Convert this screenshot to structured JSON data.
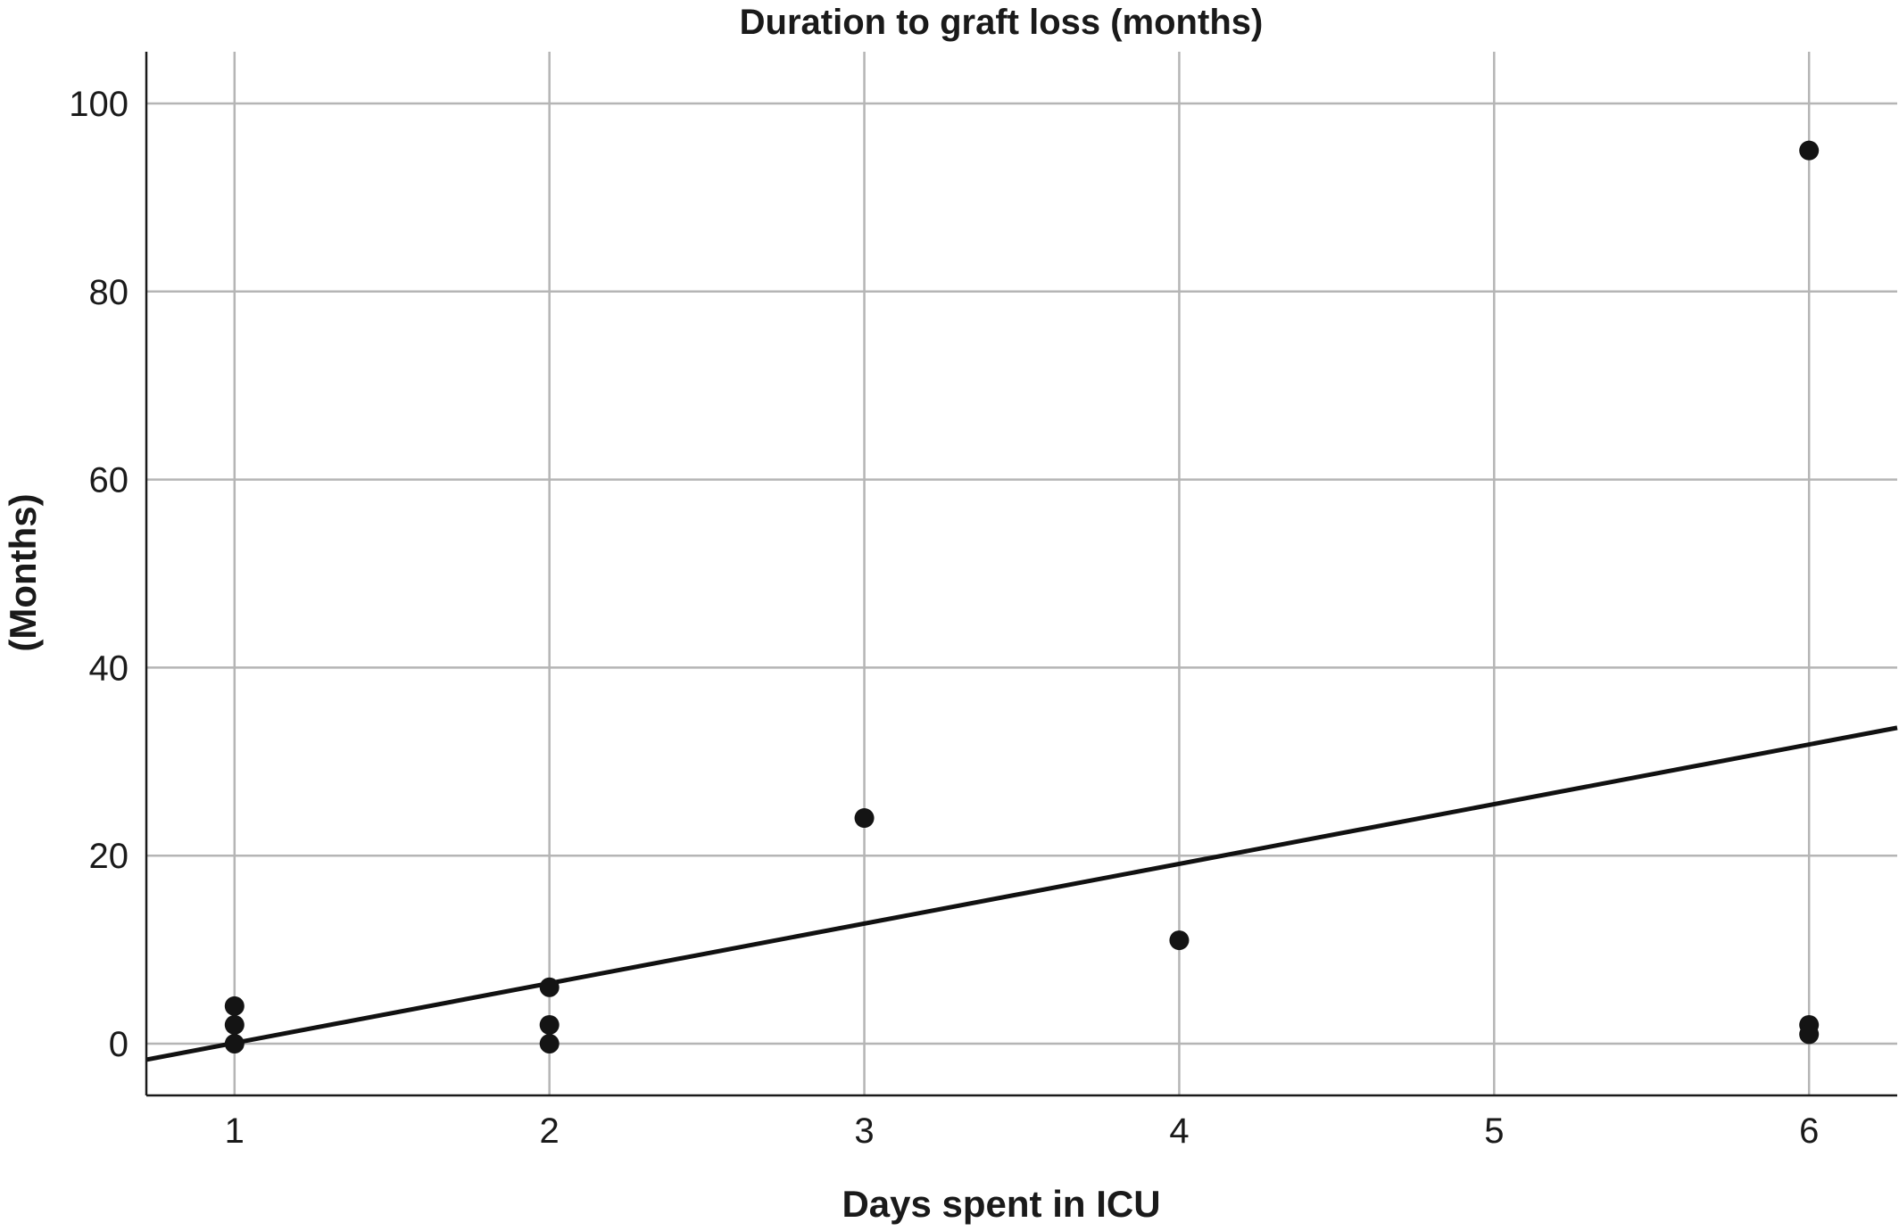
{
  "chart_data": {
    "type": "scatter",
    "title": "Duration to graft loss (months)",
    "xlabel": "Days spent in ICU",
    "ylabel": "(Months)",
    "xlim": [
      0.72,
      6.28
    ],
    "ylim": [
      -5.5,
      105.5
    ],
    "xticks": [
      1,
      2,
      3,
      4,
      5,
      6
    ],
    "yticks": [
      0,
      20,
      40,
      60,
      80,
      100
    ],
    "grid": true,
    "points": [
      {
        "x": 1,
        "y": 4
      },
      {
        "x": 1,
        "y": 2
      },
      {
        "x": 1,
        "y": 0
      },
      {
        "x": 2,
        "y": 6
      },
      {
        "x": 2,
        "y": 2
      },
      {
        "x": 2,
        "y": 0
      },
      {
        "x": 3,
        "y": 24
      },
      {
        "x": 4,
        "y": 11
      },
      {
        "x": 6,
        "y": 95
      },
      {
        "x": 6,
        "y": 2
      },
      {
        "x": 6,
        "y": 1
      }
    ],
    "fit_line": {
      "x": [
        0.72,
        6.28
      ],
      "y": [
        -1.7,
        33.6
      ]
    },
    "colors": {
      "points": "#141414",
      "line": "#111111",
      "grid": "#b5b5b5"
    }
  }
}
